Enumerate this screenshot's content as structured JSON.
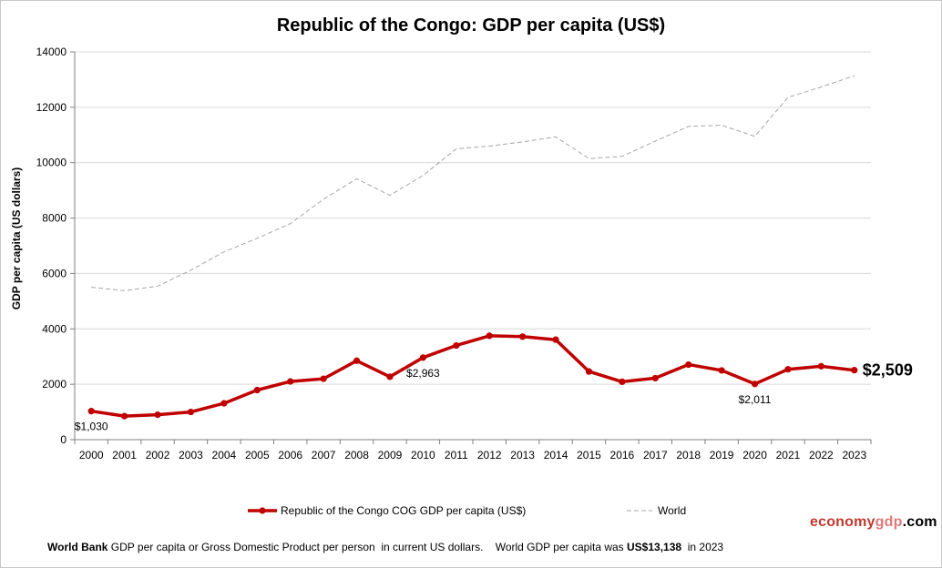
{
  "chart_data": {
    "type": "line",
    "title": "Republic of the Congo: GDP per capita (US$)",
    "xlabel": "",
    "ylabel": "GDP per capita (US dollars)",
    "ylim": [
      0,
      14000
    ],
    "yticks": [
      0,
      2000,
      4000,
      6000,
      8000,
      10000,
      12000,
      14000
    ],
    "grid": true,
    "legend_position": "bottom",
    "categories": [
      "2000",
      "2001",
      "2002",
      "2003",
      "2004",
      "2005",
      "2006",
      "2007",
      "2008",
      "2009",
      "2010",
      "2011",
      "2012",
      "2013",
      "2014",
      "2015",
      "2016",
      "2017",
      "2018",
      "2019",
      "2020",
      "2021",
      "2022",
      "2023"
    ],
    "series": [
      {
        "name": "Republic of the Congo COG GDP per capita (US$)",
        "color": "#c00000",
        "style": "solid-markers",
        "values": [
          1030,
          850,
          900,
          1000,
          1310,
          1790,
          2100,
          2200,
          2850,
          2270,
          2963,
          3400,
          3750,
          3720,
          3610,
          2460,
          2090,
          2220,
          2710,
          2500,
          2011,
          2540,
          2650,
          2509
        ]
      },
      {
        "name": "World",
        "color": "#a6a6a6",
        "style": "dashed",
        "values": [
          5500,
          5380,
          5540,
          6120,
          6780,
          7270,
          7800,
          8680,
          9420,
          8820,
          9540,
          10500,
          10600,
          10750,
          10930,
          10150,
          10230,
          10780,
          11310,
          11350,
          10950,
          12360,
          12730,
          13138
        ]
      }
    ],
    "annotations": [
      {
        "label": "$1,030",
        "series": 0,
        "index": 0,
        "position": "below"
      },
      {
        "label": "$2,963",
        "series": 0,
        "index": 10,
        "position": "below"
      },
      {
        "label": "$2,011",
        "series": 0,
        "index": 20,
        "position": "below"
      },
      {
        "label": "$2,509",
        "series": 0,
        "index": 23,
        "position": "right",
        "emphasis": true
      }
    ]
  },
  "footer": {
    "source": "World Bank",
    "text1": " GDP per capita or Gross Domestic Product per person  in current US dollars.    World GDP per capita was ",
    "world_value": "US$13,138",
    "text2": "  in 2023"
  },
  "brand": {
    "part1": "economy",
    "part2": "gdp",
    "part3": ".com",
    "color1": "#c0392b",
    "color2": "#e07a7a",
    "color3": "#000000"
  }
}
